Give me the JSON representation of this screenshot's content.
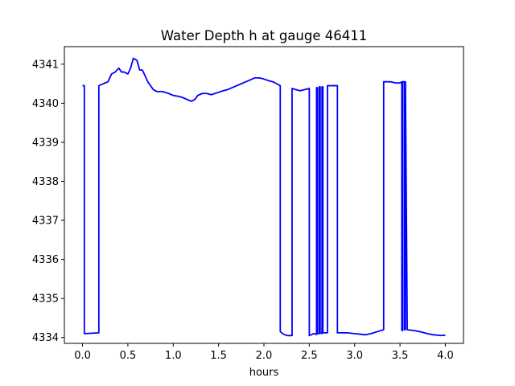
{
  "chart_data": {
    "type": "line",
    "title": "Water Depth h at gauge 46411",
    "xlabel": "hours",
    "ylabel": "",
    "xlim": [
      -0.2,
      4.2
    ],
    "ylim": [
      4333.85,
      4341.45
    ],
    "xticks": [
      0.0,
      0.5,
      1.0,
      1.5,
      2.0,
      2.5,
      3.0,
      3.5,
      4.0
    ],
    "xtick_labels": [
      "0.0",
      "0.5",
      "1.0",
      "1.5",
      "2.0",
      "2.5",
      "3.0",
      "3.5",
      "4.0"
    ],
    "yticks": [
      4334,
      4335,
      4336,
      4337,
      4338,
      4339,
      4340,
      4341
    ],
    "ytick_labels": [
      "4334",
      "4335",
      "4336",
      "4337",
      "4338",
      "4339",
      "4340",
      "4341"
    ],
    "grid": false,
    "series": [
      {
        "color": "#0000ff",
        "x": [
          0.0,
          0.02,
          0.02,
          0.18,
          0.18,
          0.28,
          0.32,
          0.36,
          0.4,
          0.43,
          0.46,
          0.5,
          0.53,
          0.56,
          0.6,
          0.63,
          0.66,
          0.69,
          0.72,
          0.75,
          0.78,
          0.82,
          0.88,
          0.95,
          1.0,
          1.05,
          1.1,
          1.15,
          1.2,
          1.24,
          1.27,
          1.32,
          1.37,
          1.42,
          1.46,
          1.5,
          1.55,
          1.6,
          1.65,
          1.7,
          1.75,
          1.8,
          1.85,
          1.9,
          1.95,
          2.0,
          2.05,
          2.1,
          2.14,
          2.18,
          2.18,
          2.22,
          2.26,
          2.31,
          2.31,
          2.35,
          2.4,
          2.45,
          2.5,
          2.5,
          2.55,
          2.58,
          2.58,
          2.59,
          2.59,
          2.61,
          2.61,
          2.62,
          2.62,
          2.64,
          2.64,
          2.65,
          2.65,
          2.7,
          2.7,
          2.81,
          2.81,
          2.85,
          2.92,
          3.0,
          3.08,
          3.12,
          3.18,
          3.25,
          3.32,
          3.32,
          3.35,
          3.4,
          3.45,
          3.5,
          3.52,
          3.52,
          3.53,
          3.53,
          3.55,
          3.55,
          3.56,
          3.56,
          3.58,
          3.65,
          3.72,
          3.8,
          3.87,
          3.95,
          4.0
        ],
        "y": [
          4340.45,
          4340.45,
          4334.1,
          4334.12,
          4340.45,
          4340.55,
          4340.75,
          4340.8,
          4340.9,
          4340.8,
          4340.8,
          4340.75,
          4340.9,
          4341.15,
          4341.1,
          4340.85,
          4340.85,
          4340.7,
          4340.55,
          4340.45,
          4340.35,
          4340.3,
          4340.3,
          4340.25,
          4340.2,
          4340.18,
          4340.15,
          4340.1,
          4340.05,
          4340.1,
          4340.2,
          4340.25,
          4340.25,
          4340.22,
          4340.25,
          4340.28,
          4340.32,
          4340.35,
          4340.4,
          4340.45,
          4340.5,
          4340.55,
          4340.6,
          4340.65,
          4340.65,
          4340.62,
          4340.58,
          4340.55,
          4340.5,
          4340.45,
          4334.15,
          4334.08,
          4334.05,
          4334.05,
          4340.38,
          4340.35,
          4340.32,
          4340.35,
          4340.38,
          4334.05,
          4334.1,
          4334.08,
          4340.4,
          4340.4,
          4334.1,
          4334.1,
          4340.42,
          4340.42,
          4334.12,
          4334.1,
          4340.42,
          4340.42,
          4334.12,
          4334.12,
          4340.45,
          4340.45,
          4334.12,
          4334.12,
          4334.12,
          4334.1,
          4334.08,
          4334.07,
          4334.1,
          4334.15,
          4334.2,
          4340.55,
          4340.55,
          4340.55,
          4340.52,
          4340.52,
          4340.55,
          4334.18,
          4334.18,
          4340.55,
          4340.55,
          4334.2,
          4334.2,
          4340.55,
          4334.2,
          4334.18,
          4334.15,
          4334.1,
          4334.07,
          4334.05,
          4334.06
        ]
      }
    ]
  }
}
